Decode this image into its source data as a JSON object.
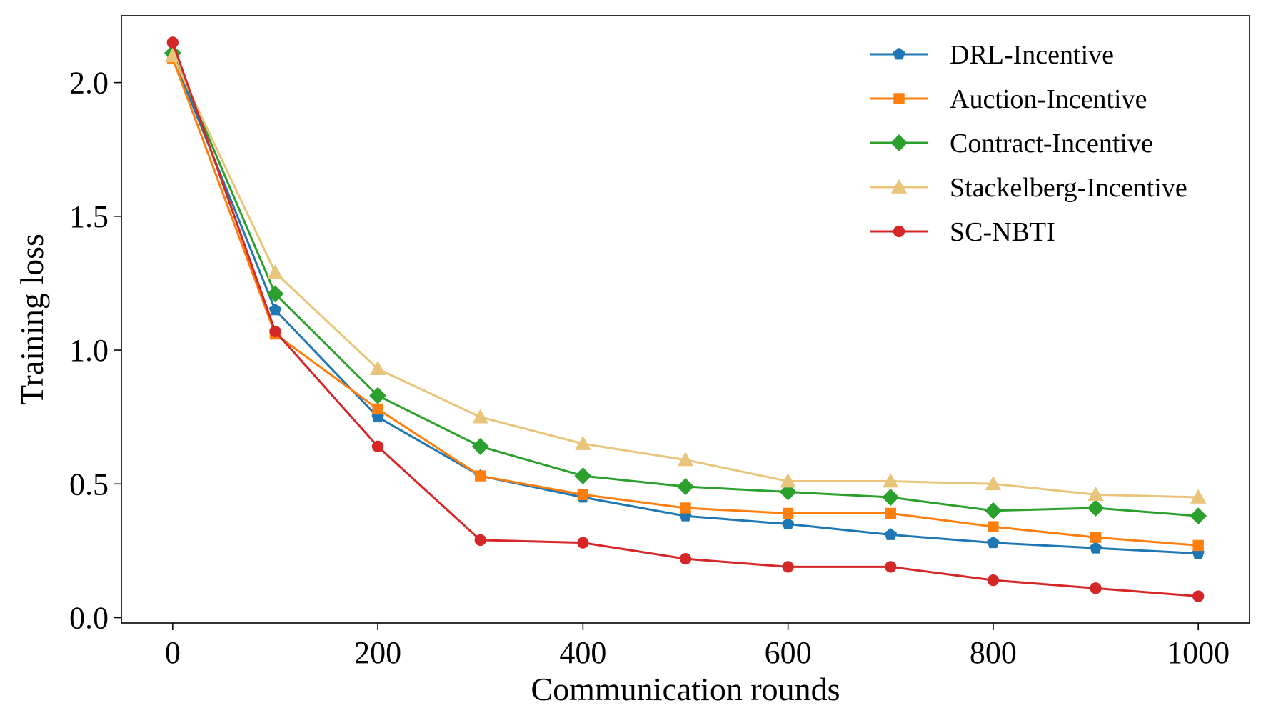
{
  "chart_data": {
    "type": "line",
    "xlabel": "Communication rounds",
    "ylabel": "Training loss",
    "x": [
      0,
      100,
      200,
      300,
      400,
      500,
      600,
      700,
      800,
      900,
      1000
    ],
    "xlim": [
      -50,
      1050
    ],
    "ylim": [
      -0.02,
      2.25
    ],
    "xticks": [
      0,
      200,
      400,
      600,
      800,
      1000
    ],
    "xtick_labels": [
      "0",
      "200",
      "400",
      "600",
      "800",
      "1000"
    ],
    "yticks": [
      0.0,
      0.5,
      1.0,
      1.5,
      2.0
    ],
    "ytick_labels": [
      "0.0",
      "0.5",
      "1.0",
      "1.5",
      "2.0"
    ],
    "grid": false,
    "legend_position": "top-right",
    "series": [
      {
        "name": "DRL-Incentive",
        "color": "#1f77b4",
        "marker": "pentagon",
        "values": [
          2.1,
          1.15,
          0.75,
          0.53,
          0.45,
          0.38,
          0.35,
          0.31,
          0.28,
          0.26,
          0.24
        ]
      },
      {
        "name": "Auction-Incentive",
        "color": "#ff7f0e",
        "marker": "square",
        "values": [
          2.09,
          1.06,
          0.78,
          0.53,
          0.46,
          0.41,
          0.39,
          0.39,
          0.34,
          0.3,
          0.27
        ]
      },
      {
        "name": "Contract-Incentive",
        "color": "#2ca02c",
        "marker": "diamond",
        "values": [
          2.11,
          1.21,
          0.83,
          0.64,
          0.53,
          0.49,
          0.47,
          0.45,
          0.4,
          0.41,
          0.38
        ]
      },
      {
        "name": "Stackelberg-Incentive",
        "color": "#e8c57a",
        "marker": "triangle",
        "values": [
          2.1,
          1.29,
          0.93,
          0.75,
          0.65,
          0.59,
          0.51,
          0.51,
          0.5,
          0.46,
          0.45
        ]
      },
      {
        "name": "SC-NBTI",
        "color": "#d62728",
        "marker": "circle",
        "values": [
          2.15,
          1.07,
          0.64,
          0.29,
          0.28,
          0.22,
          0.19,
          0.19,
          0.14,
          0.11,
          0.08
        ]
      }
    ]
  }
}
